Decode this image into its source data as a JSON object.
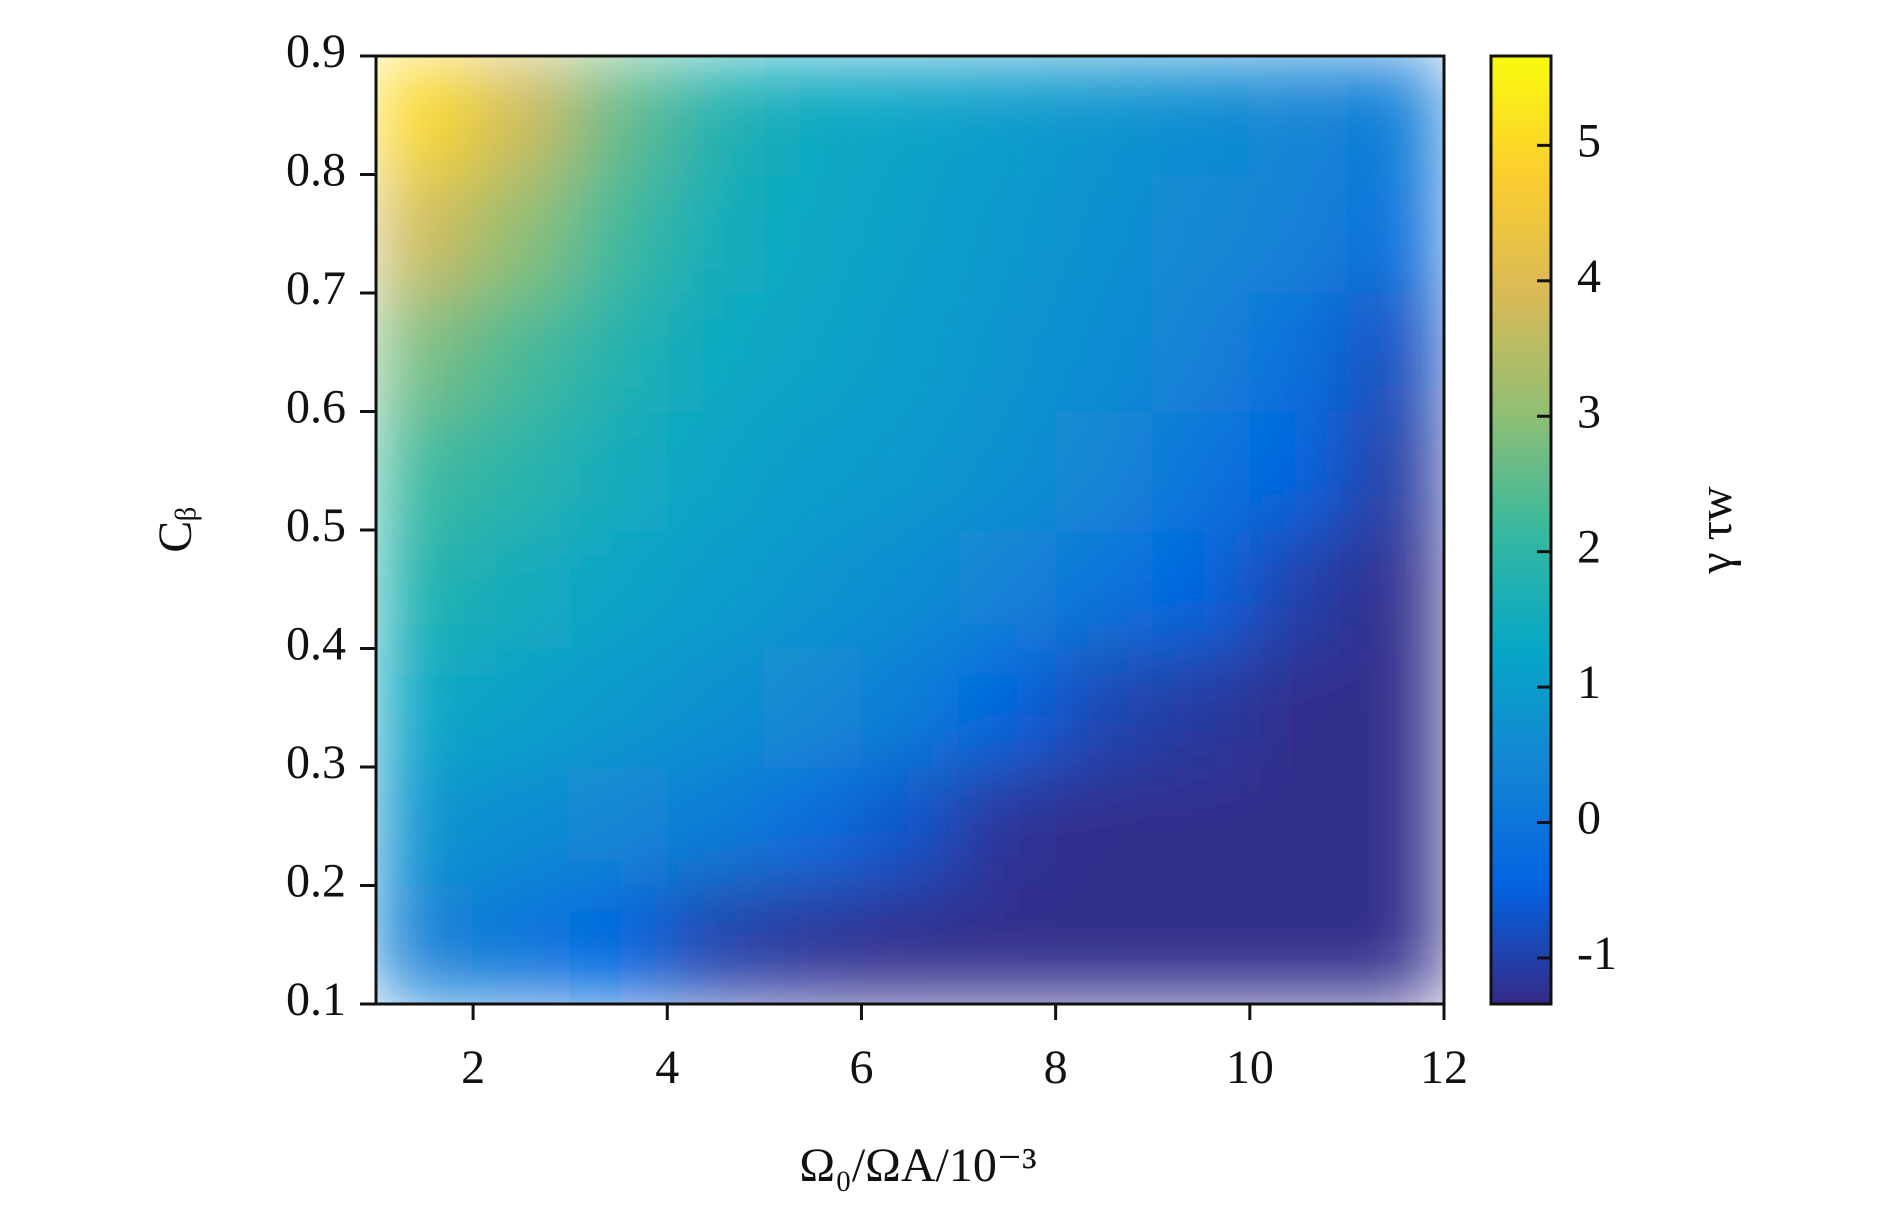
{
  "chart_data": {
    "type": "heatmap",
    "x_label": "Ω₀/ΩA/10⁻³",
    "y_label": "Cᵦ",
    "colorbar_label": "γ τw",
    "x": [
      1.5,
      2.5,
      3.5,
      4.5,
      5.5,
      6.5,
      7.5,
      8.5,
      9.5,
      10.5,
      11.5
    ],
    "y": [
      0.15,
      0.25,
      0.35,
      0.45,
      0.55,
      0.65,
      0.75,
      0.85
    ],
    "z": [
      [
        0.3,
        0.0,
        -0.4,
        -1.0,
        -1.2,
        -1.3,
        -1.3,
        -1.3,
        -1.3,
        -1.3,
        -1.3
      ],
      [
        0.8,
        0.6,
        0.4,
        0.2,
        -0.2,
        -0.7,
        -1.2,
        -1.3,
        -1.3,
        -1.3,
        -1.3
      ],
      [
        1.3,
        1.1,
        0.9,
        0.7,
        0.5,
        0.2,
        -0.4,
        -0.9,
        -1.1,
        -1.3,
        -1.3
      ],
      [
        1.8,
        1.5,
        1.2,
        1.0,
        0.8,
        0.6,
        0.3,
        0.0,
        -0.4,
        -1.0,
        -1.3
      ],
      [
        2.2,
        1.9,
        1.5,
        1.2,
        1.0,
        0.9,
        0.7,
        0.4,
        0.0,
        -0.4,
        -1.1
      ],
      [
        2.8,
        2.3,
        1.8,
        1.4,
        1.2,
        1.0,
        0.8,
        0.6,
        0.3,
        -0.1,
        -0.8
      ],
      [
        3.8,
        3.0,
        2.2,
        1.6,
        1.3,
        1.1,
        0.9,
        0.7,
        0.5,
        0.3,
        -0.1
      ],
      [
        5.0,
        3.8,
        2.6,
        1.8,
        1.4,
        1.2,
        1.0,
        0.8,
        0.6,
        0.4,
        0.2
      ]
    ],
    "xlim": [
      1,
      12
    ],
    "xticks": [
      2,
      4,
      6,
      8,
      10,
      12
    ],
    "ylim": [
      0.1,
      0.9
    ],
    "yticks": [
      0.1,
      0.2,
      0.3,
      0.4,
      0.5,
      0.6,
      0.7,
      0.8,
      0.9
    ],
    "clim": [
      -1.34,
      5.66
    ],
    "cticks": [
      -1,
      0,
      1,
      2,
      3,
      4,
      5
    ],
    "colormap": [
      "#352a87",
      "#0363e1",
      "#1485d4",
      "#06a7c6",
      "#38b99e",
      "#92bf73",
      "#d9ba56",
      "#fcce2e",
      "#f9fb0e"
    ]
  }
}
